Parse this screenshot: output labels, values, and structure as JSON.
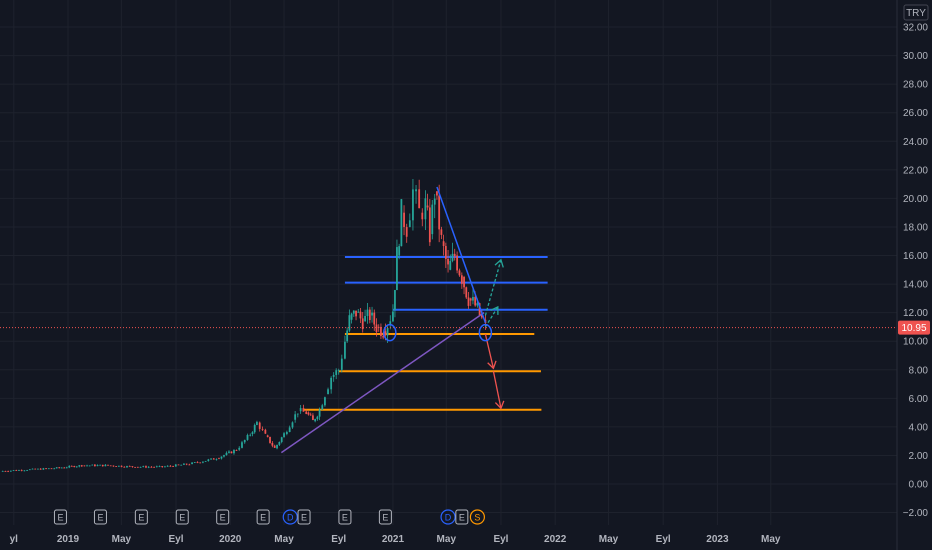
{
  "currency": "TRY",
  "current_price_label": "10.95",
  "chart_data": {
    "type": "line",
    "ylim": [
      -2,
      33
    ],
    "y_ticks": [
      -2,
      0,
      2,
      4,
      6,
      8,
      10,
      12,
      14,
      16,
      18,
      20,
      22,
      24,
      26,
      28,
      30,
      32
    ],
    "y_tick_labels": [
      "−2.00",
      "0.00",
      "2.00",
      "4.00",
      "6.00",
      "8.00",
      "10.00",
      "12.00",
      "14.00",
      "16.00",
      "18.00",
      "20.00",
      "22.00",
      "24.00",
      "26.00",
      "28.00",
      "30.00",
      "32.00"
    ],
    "x_range": [
      "2018-08-01",
      "2023-08-01"
    ],
    "x_ticks": [
      {
        "label": "yl",
        "date": "2018-09-01"
      },
      {
        "label": "2019",
        "date": "2019-01-01"
      },
      {
        "label": "May",
        "date": "2019-05-01"
      },
      {
        "label": "Eyl",
        "date": "2019-09-01"
      },
      {
        "label": "2020",
        "date": "2020-01-01"
      },
      {
        "label": "May",
        "date": "2020-05-01"
      },
      {
        "label": "Eyl",
        "date": "2020-09-01"
      },
      {
        "label": "2021",
        "date": "2021-01-01"
      },
      {
        "label": "May",
        "date": "2021-05-01"
      },
      {
        "label": "Eyl",
        "date": "2021-09-01"
      },
      {
        "label": "2022",
        "date": "2022-01-01"
      },
      {
        "label": "May",
        "date": "2022-05-01"
      },
      {
        "label": "Eyl",
        "date": "2022-09-01"
      },
      {
        "label": "2023",
        "date": "2023-01-01"
      },
      {
        "label": "May",
        "date": "2023-05-01"
      }
    ],
    "price_series": [
      [
        "2018-08-01",
        0.9
      ],
      [
        "2018-10-01",
        1.0
      ],
      [
        "2018-12-01",
        1.1
      ],
      [
        "2019-02-01",
        1.3
      ],
      [
        "2019-04-01",
        1.3
      ],
      [
        "2019-06-01",
        1.2
      ],
      [
        "2019-08-01",
        1.2
      ],
      [
        "2019-10-01",
        1.4
      ],
      [
        "2019-12-01",
        1.8
      ],
      [
        "2020-01-15",
        2.4
      ],
      [
        "2020-02-15",
        3.5
      ],
      [
        "2020-03-01",
        4.3
      ],
      [
        "2020-03-20",
        3.4
      ],
      [
        "2020-04-10",
        2.5
      ],
      [
        "2020-05-01",
        3.5
      ],
      [
        "2020-05-20",
        4.5
      ],
      [
        "2020-06-01",
        5.1
      ],
      [
        "2020-06-20",
        5.0
      ],
      [
        "2020-07-05",
        4.4
      ],
      [
        "2020-07-20",
        5.2
      ],
      [
        "2020-08-01",
        6.3
      ],
      [
        "2020-08-15",
        7.5
      ],
      [
        "2020-09-01",
        8.0
      ],
      [
        "2020-09-15",
        10.0
      ],
      [
        "2020-09-25",
        11.5
      ],
      [
        "2020-10-10",
        12.0
      ],
      [
        "2020-10-25",
        11.4
      ],
      [
        "2020-11-10",
        11.8
      ],
      [
        "2020-11-25",
        11.0
      ],
      [
        "2020-12-10",
        10.7
      ],
      [
        "2020-12-20",
        11.2
      ],
      [
        "2021-01-01",
        12.2
      ],
      [
        "2021-01-10",
        16.0
      ],
      [
        "2021-01-20",
        19.0
      ],
      [
        "2021-02-01",
        18.0
      ],
      [
        "2021-02-15",
        20.5
      ],
      [
        "2021-03-01",
        19.0
      ],
      [
        "2021-03-15",
        19.5
      ],
      [
        "2021-03-25",
        17.5
      ],
      [
        "2021-04-05",
        20.5
      ],
      [
        "2021-04-20",
        17.0
      ],
      [
        "2021-05-05",
        15.0
      ],
      [
        "2021-05-20",
        16.0
      ],
      [
        "2021-06-05",
        14.5
      ],
      [
        "2021-06-20",
        13.0
      ],
      [
        "2021-07-05",
        12.5
      ],
      [
        "2021-07-20",
        11.5
      ],
      [
        "2021-07-28",
        10.95
      ]
    ],
    "horizontal_levels": [
      {
        "price": 15.9,
        "color": "#2962ff",
        "from": "2020-09-15",
        "to": "2021-12-15"
      },
      {
        "price": 14.1,
        "color": "#2962ff",
        "from": "2020-09-15",
        "to": "2021-12-15"
      },
      {
        "price": 12.2,
        "color": "#2962ff",
        "from": "2021-01-01",
        "to": "2021-12-15"
      },
      {
        "price": 10.5,
        "color": "#ff9800",
        "from": "2020-09-15",
        "to": "2021-11-15"
      },
      {
        "price": 7.9,
        "color": "#ff9800",
        "from": "2020-09-01",
        "to": "2021-11-30"
      },
      {
        "price": 5.2,
        "color": "#ff9800",
        "from": "2020-06-15",
        "to": "2021-12-01"
      }
    ],
    "trend_lines": [
      {
        "from": [
          "2020-04-25",
          2.2
        ],
        "to": [
          "2021-07-25",
          12.0
        ],
        "color": "#7e57c2"
      },
      {
        "from": [
          "2021-04-10",
          20.8
        ],
        "to": [
          "2021-07-28",
          11.3
        ],
        "color": "#2962ff"
      }
    ],
    "arrows": [
      {
        "from": [
          "2021-07-28",
          11.8
        ],
        "to": [
          "2021-09-01",
          15.7
        ],
        "color": "#26a69a",
        "dashed": true
      },
      {
        "from": [
          "2021-07-28",
          11.0
        ],
        "to": [
          "2021-08-25",
          12.4
        ],
        "color": "#26a69a",
        "dashed": true
      },
      {
        "from": [
          "2021-07-28",
          10.5
        ],
        "to": [
          "2021-08-15",
          8.1
        ],
        "color": "#ef5350",
        "dashed": false
      },
      {
        "from": [
          "2021-08-15",
          7.9
        ],
        "to": [
          "2021-09-01",
          5.3
        ],
        "color": "#ef5350",
        "dashed": false
      }
    ],
    "ellipses": [
      {
        "date": "2020-12-25",
        "price": 10.6
      },
      {
        "date": "2021-07-28",
        "price": 10.6
      }
    ],
    "events": [
      {
        "label": "E",
        "date": "2018-12-15",
        "kind": "earnings"
      },
      {
        "label": "E",
        "date": "2019-03-15",
        "kind": "earnings"
      },
      {
        "label": "E",
        "date": "2019-06-15",
        "kind": "earnings"
      },
      {
        "label": "E",
        "date": "2019-09-15",
        "kind": "earnings"
      },
      {
        "label": "E",
        "date": "2019-12-15",
        "kind": "earnings"
      },
      {
        "label": "E",
        "date": "2020-03-15",
        "kind": "earnings"
      },
      {
        "label": "D",
        "date": "2020-05-15",
        "kind": "dividend"
      },
      {
        "label": "E",
        "date": "2020-06-15",
        "kind": "earnings"
      },
      {
        "label": "E",
        "date": "2020-09-15",
        "kind": "earnings"
      },
      {
        "label": "E",
        "date": "2020-12-15",
        "kind": "earnings"
      },
      {
        "label": "D",
        "date": "2021-05-05",
        "kind": "dividend"
      },
      {
        "label": "E",
        "date": "2021-06-05",
        "kind": "earnings"
      },
      {
        "label": "S",
        "date": "2021-07-10",
        "kind": "split"
      }
    ]
  },
  "colors": {
    "background": "#131722",
    "grid": "#1e222d",
    "text": "#b2b5be",
    "candle_up": "#26a69a",
    "candle_down": "#ef5350",
    "price_line": "#ef5350",
    "dividend": "#2962ff",
    "split": "#ff9800"
  }
}
